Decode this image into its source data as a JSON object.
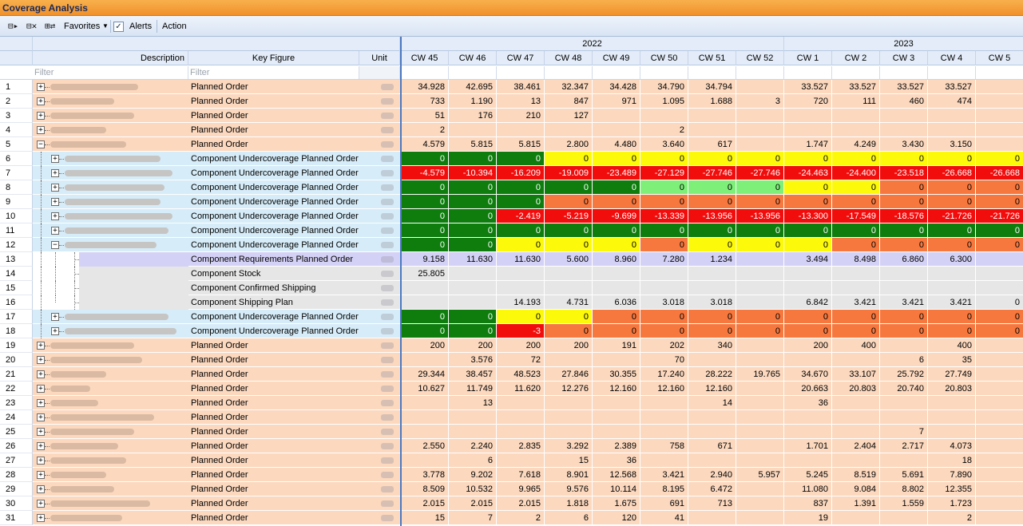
{
  "window": {
    "title": "Coverage Analysis"
  },
  "toolbar": {
    "favorites_label": "Favorites",
    "alerts_label": "Alerts",
    "action_label": "Action",
    "alerts_checked": true
  },
  "columns": {
    "description": "Description",
    "key_figure": "Key Figure",
    "unit": "Unit",
    "filter_placeholder": "Filter"
  },
  "years": [
    {
      "label": "2022",
      "span": 8
    },
    {
      "label": "2023",
      "span": 5
    }
  ],
  "weeks": [
    "CW 45",
    "CW 46",
    "CW 47",
    "CW 48",
    "CW 49",
    "CW 50",
    "CW 51",
    "CW 52",
    "CW 1",
    "CW 2",
    "CW 3",
    "CW 4",
    "CW 5"
  ],
  "colors": {
    "green": "#0e7d0e",
    "red": "#f20d0d",
    "yellow": "#fcf90a",
    "orange": "#f7783e",
    "light_green": "#7ef07a",
    "peach": "#fbd8be",
    "light_blue": "#d6ecf8",
    "lavender": "#d4d1f6",
    "grey": "#e6e6e6",
    "accent": "#f0902a"
  },
  "rows": [
    {
      "n": "1",
      "level": 0,
      "exp": "+",
      "kf": "Planned Order",
      "bg": "peach",
      "vals": [
        "34.928",
        "42.695",
        "38.461",
        "32.347",
        "34.428",
        "34.790",
        "34.794",
        "",
        "33.527",
        "33.527",
        "33.527",
        "33.527",
        ""
      ]
    },
    {
      "n": "2",
      "level": 0,
      "exp": "+",
      "kf": "Planned Order",
      "bg": "peach",
      "vals": [
        "733",
        "1.190",
        "13",
        "847",
        "971",
        "1.095",
        "1.688",
        "3",
        "720",
        "111",
        "460",
        "474",
        ""
      ]
    },
    {
      "n": "3",
      "level": 0,
      "exp": "+",
      "kf": "Planned Order",
      "bg": "peach",
      "vals": [
        "51",
        "176",
        "210",
        "127",
        "",
        "",
        "",
        "",
        "",
        "",
        "",
        "",
        ""
      ]
    },
    {
      "n": "4",
      "level": 0,
      "exp": "+",
      "kf": "Planned Order",
      "bg": "peach",
      "vals": [
        "2",
        "",
        "",
        "",
        "",
        "2",
        "",
        "",
        "",
        "",
        "",
        "",
        ""
      ]
    },
    {
      "n": "5",
      "level": 0,
      "exp": "-",
      "kf": "Planned Order",
      "bg": "peach",
      "vals": [
        "4.579",
        "5.815",
        "5.815",
        "2.800",
        "4.480",
        "3.640",
        "617",
        "",
        "1.747",
        "4.249",
        "3.430",
        "3.150",
        ""
      ]
    },
    {
      "n": "6",
      "level": 1,
      "exp": "+",
      "kf": "Component Undercoverage Planned Order",
      "bg": "lblue",
      "vals": [
        "0",
        "0",
        "0",
        "0",
        "0",
        "0",
        "0",
        "0",
        "0",
        "0",
        "0",
        "0",
        "0"
      ],
      "cc": [
        "g",
        "g",
        "g",
        "y",
        "y",
        "y",
        "y",
        "y",
        "y",
        "y",
        "y",
        "y",
        "y"
      ]
    },
    {
      "n": "7",
      "level": 1,
      "exp": "+",
      "kf": "Component Undercoverage Planned Order",
      "bg": "lblue",
      "vals": [
        "-4.579",
        "-10.394",
        "-16.209",
        "-19.009",
        "-23.489",
        "-27.129",
        "-27.746",
        "-27.746",
        "-24.463",
        "-24.400",
        "-23.518",
        "-26.668",
        "-26.668"
      ],
      "cc": [
        "r",
        "r",
        "r",
        "r",
        "r",
        "r",
        "r",
        "r",
        "r",
        "r",
        "r",
        "r",
        "r"
      ]
    },
    {
      "n": "8",
      "level": 1,
      "exp": "+",
      "kf": "Component Undercoverage Planned Order",
      "bg": "lblue",
      "vals": [
        "0",
        "0",
        "0",
        "0",
        "0",
        "0",
        "0",
        "0",
        "0",
        "0",
        "0",
        "0",
        "0"
      ],
      "cc": [
        "g",
        "g",
        "g",
        "g",
        "g",
        "lg",
        "lg",
        "lg",
        "y",
        "y",
        "o",
        "o",
        "o"
      ]
    },
    {
      "n": "9",
      "level": 1,
      "exp": "+",
      "kf": "Component Undercoverage Planned Order",
      "bg": "lblue",
      "vals": [
        "0",
        "0",
        "0",
        "0",
        "0",
        "0",
        "0",
        "0",
        "0",
        "0",
        "0",
        "0",
        "0"
      ],
      "cc": [
        "g",
        "g",
        "g",
        "o",
        "o",
        "o",
        "o",
        "o",
        "o",
        "o",
        "o",
        "o",
        "o"
      ]
    },
    {
      "n": "10",
      "level": 1,
      "exp": "+",
      "kf": "Component Undercoverage Planned Order",
      "bg": "lblue",
      "vals": [
        "0",
        "0",
        "-2.419",
        "-5.219",
        "-9.699",
        "-13.339",
        "-13.956",
        "-13.956",
        "-13.300",
        "-17.549",
        "-18.576",
        "-21.726",
        "-21.726"
      ],
      "cc": [
        "g",
        "g",
        "r",
        "r",
        "r",
        "r",
        "r",
        "r",
        "r",
        "r",
        "r",
        "r",
        "r"
      ]
    },
    {
      "n": "11",
      "level": 1,
      "exp": "+",
      "kf": "Component Undercoverage Planned Order",
      "bg": "lblue",
      "vals": [
        "0",
        "0",
        "0",
        "0",
        "0",
        "0",
        "0",
        "0",
        "0",
        "0",
        "0",
        "0",
        "0"
      ],
      "cc": [
        "g",
        "g",
        "g",
        "g",
        "g",
        "g",
        "g",
        "g",
        "g",
        "g",
        "g",
        "g",
        "g"
      ]
    },
    {
      "n": "12",
      "level": 1,
      "exp": "-",
      "kf": "Component Undercoverage Planned Order",
      "bg": "lblue",
      "vals": [
        "0",
        "0",
        "0",
        "0",
        "0",
        "0",
        "0",
        "0",
        "0",
        "0",
        "0",
        "0",
        "0"
      ],
      "cc": [
        "g",
        "g",
        "y",
        "y",
        "y",
        "o",
        "y",
        "y",
        "y",
        "o",
        "o",
        "o",
        "o"
      ]
    },
    {
      "n": "13",
      "level": 2,
      "exp": "",
      "kf": "Component Requirements Planned Order",
      "bg": "lav",
      "vals": [
        "9.158",
        "11.630",
        "11.630",
        "5.600",
        "8.960",
        "7.280",
        "1.234",
        "",
        "3.494",
        "8.498",
        "6.860",
        "6.300",
        ""
      ]
    },
    {
      "n": "14",
      "level": 2,
      "exp": "",
      "kf": "Component Stock",
      "bg": "grey",
      "vals": [
        "25.805",
        "",
        "",
        "",
        "",
        "",
        "",
        "",
        "",
        "",
        "",
        "",
        ""
      ]
    },
    {
      "n": "15",
      "level": 2,
      "exp": "",
      "kf": "Component Confirmed Shipping",
      "bg": "grey",
      "vals": [
        "",
        "",
        "",
        "",
        "",
        "",
        "",
        "",
        "",
        "",
        "",
        "",
        ""
      ]
    },
    {
      "n": "16",
      "level": 2,
      "exp": "",
      "kf": "Component Shipping Plan",
      "bg": "grey",
      "vals": [
        "",
        "",
        "14.193",
        "4.731",
        "6.036",
        "3.018",
        "3.018",
        "",
        "6.842",
        "3.421",
        "3.421",
        "3.421",
        "0"
      ]
    },
    {
      "n": "17",
      "level": 1,
      "exp": "+",
      "kf": "Component Undercoverage Planned Order",
      "bg": "lblue",
      "vals": [
        "0",
        "0",
        "0",
        "0",
        "0",
        "0",
        "0",
        "0",
        "0",
        "0",
        "0",
        "0",
        "0"
      ],
      "cc": [
        "g",
        "g",
        "y",
        "y",
        "o",
        "o",
        "o",
        "o",
        "o",
        "o",
        "o",
        "o",
        "o"
      ]
    },
    {
      "n": "18",
      "level": 1,
      "exp": "+",
      "kf": "Component Undercoverage Planned Order",
      "bg": "lblue",
      "vals": [
        "0",
        "0",
        "-3",
        "0",
        "0",
        "0",
        "0",
        "0",
        "0",
        "0",
        "0",
        "0",
        "0"
      ],
      "cc": [
        "g",
        "g",
        "r",
        "o",
        "o",
        "o",
        "o",
        "o",
        "o",
        "o",
        "o",
        "o",
        "o"
      ]
    },
    {
      "n": "19",
      "level": 0,
      "exp": "+",
      "kf": "Planned Order",
      "bg": "peach",
      "vals": [
        "200",
        "200",
        "200",
        "200",
        "191",
        "202",
        "340",
        "",
        "200",
        "400",
        "",
        "400",
        ""
      ]
    },
    {
      "n": "20",
      "level": 0,
      "exp": "+",
      "kf": "Planned Order",
      "bg": "peach",
      "vals": [
        "",
        "3.576",
        "72",
        "",
        "",
        "70",
        "",
        "",
        "",
        "",
        "6",
        "35",
        ""
      ]
    },
    {
      "n": "21",
      "level": 0,
      "exp": "+",
      "kf": "Planned Order",
      "bg": "peach",
      "vals": [
        "29.344",
        "38.457",
        "48.523",
        "27.846",
        "30.355",
        "17.240",
        "28.222",
        "19.765",
        "34.670",
        "33.107",
        "25.792",
        "27.749",
        ""
      ]
    },
    {
      "n": "22",
      "level": 0,
      "exp": "+",
      "kf": "Planned Order",
      "bg": "peach",
      "vals": [
        "10.627",
        "11.749",
        "11.620",
        "12.276",
        "12.160",
        "12.160",
        "12.160",
        "",
        "20.663",
        "20.803",
        "20.740",
        "20.803",
        ""
      ]
    },
    {
      "n": "23",
      "level": 0,
      "exp": "+",
      "kf": "Planned Order",
      "bg": "peach",
      "vals": [
        "",
        "13",
        "",
        "",
        "",
        "",
        "14",
        "",
        "36",
        "",
        "",
        "",
        ""
      ]
    },
    {
      "n": "24",
      "level": 0,
      "exp": "+",
      "kf": "Planned Order",
      "bg": "peach",
      "vals": [
        "",
        "",
        "",
        "",
        "",
        "",
        "",
        "",
        "",
        "",
        "",
        "",
        ""
      ]
    },
    {
      "n": "25",
      "level": 0,
      "exp": "+",
      "kf": "Planned Order",
      "bg": "peach",
      "vals": [
        "",
        "",
        "",
        "",
        "",
        "",
        "",
        "",
        "",
        "",
        "7",
        "",
        ""
      ]
    },
    {
      "n": "26",
      "level": 0,
      "exp": "+",
      "kf": "Planned Order",
      "bg": "peach",
      "vals": [
        "2.550",
        "2.240",
        "2.835",
        "3.292",
        "2.389",
        "758",
        "671",
        "",
        "1.701",
        "2.404",
        "2.717",
        "4.073",
        ""
      ]
    },
    {
      "n": "27",
      "level": 0,
      "exp": "+",
      "kf": "Planned Order",
      "bg": "peach",
      "vals": [
        "",
        "6",
        "",
        "15",
        "36",
        "",
        "",
        "",
        "",
        "",
        "",
        "18",
        ""
      ]
    },
    {
      "n": "28",
      "level": 0,
      "exp": "+",
      "kf": "Planned Order",
      "bg": "peach",
      "vals": [
        "3.778",
        "9.202",
        "7.618",
        "8.901",
        "12.568",
        "3.421",
        "2.940",
        "5.957",
        "5.245",
        "8.519",
        "5.691",
        "7.890",
        ""
      ]
    },
    {
      "n": "29",
      "level": 0,
      "exp": "+",
      "kf": "Planned Order",
      "bg": "peach",
      "vals": [
        "8.509",
        "10.532",
        "9.965",
        "9.576",
        "10.114",
        "8.195",
        "6.472",
        "",
        "11.080",
        "9.084",
        "8.802",
        "12.355",
        ""
      ]
    },
    {
      "n": "30",
      "level": 0,
      "exp": "+",
      "kf": "Planned Order",
      "bg": "peach",
      "vals": [
        "2.015",
        "2.015",
        "2.015",
        "1.818",
        "1.675",
        "691",
        "713",
        "",
        "837",
        "1.391",
        "1.559",
        "1.723",
        ""
      ]
    },
    {
      "n": "31",
      "level": 0,
      "exp": "+",
      "kf": "Planned Order",
      "bg": "peach",
      "vals": [
        "15",
        "7",
        "2",
        "6",
        "120",
        "41",
        "",
        "",
        "19",
        "",
        "",
        "2",
        ""
      ]
    }
  ]
}
